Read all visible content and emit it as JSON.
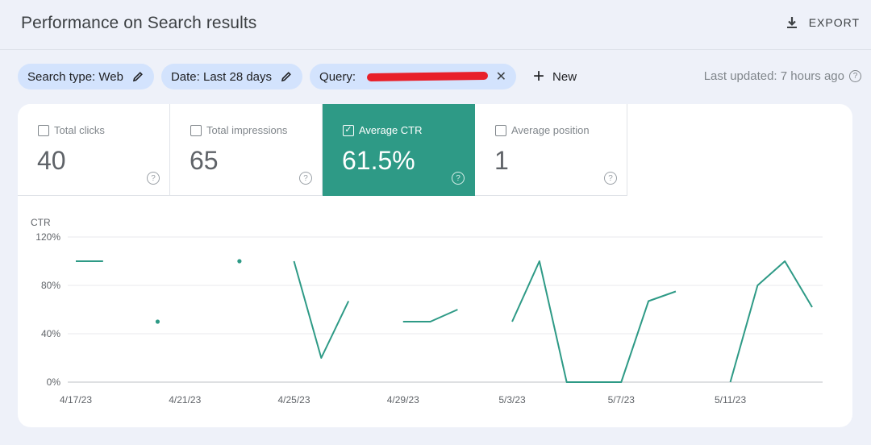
{
  "header": {
    "title": "Performance on Search results",
    "export_label": "EXPORT"
  },
  "filters": {
    "search_type": "Search type: Web",
    "date": "Date: Last 28 days",
    "query_label": "Query:",
    "new_label": "New"
  },
  "last_updated": "Last updated: 7 hours ago",
  "metrics": [
    {
      "label": "Total clicks",
      "value": "40",
      "checked": false
    },
    {
      "label": "Total impressions",
      "value": "65",
      "checked": false
    },
    {
      "label": "Average CTR",
      "value": "61.5%",
      "checked": true
    },
    {
      "label": "Average position",
      "value": "1",
      "checked": false
    }
  ],
  "colors": {
    "accent": "#2e9a86",
    "chip": "#d3e3fd",
    "line": "#2e9a86"
  },
  "chart_data": {
    "type": "line",
    "ylabel": "CTR",
    "xlabel": "",
    "ylim": [
      0,
      120
    ],
    "yticks": [
      0,
      40,
      80,
      120
    ],
    "ytick_labels": [
      "0%",
      "40%",
      "80%",
      "120%"
    ],
    "x_tick_labels": [
      "4/17/23",
      "4/21/23",
      "4/25/23",
      "4/29/23",
      "5/3/23",
      "5/7/23",
      "5/11/23"
    ],
    "x_tick_indices": [
      0,
      4,
      8,
      12,
      16,
      20,
      24
    ],
    "x": [
      "4/17/23",
      "4/18/23",
      "4/19/23",
      "4/20/23",
      "4/21/23",
      "4/22/23",
      "4/23/23",
      "4/24/23",
      "4/25/23",
      "4/26/23",
      "4/27/23",
      "4/28/23",
      "4/29/23",
      "4/30/23",
      "5/1/23",
      "5/2/23",
      "5/3/23",
      "5/4/23",
      "5/5/23",
      "5/6/23",
      "5/7/23",
      "5/8/23",
      "5/9/23",
      "5/10/23",
      "5/11/23",
      "5/12/23",
      "5/13/23",
      "5/14/23"
    ],
    "series": [
      {
        "name": "",
        "values": [
          100,
          100,
          null,
          50,
          null,
          null,
          100,
          null,
          100,
          20,
          67,
          null,
          50,
          50,
          60,
          null,
          50,
          100,
          0,
          0,
          0,
          67,
          75,
          null,
          0,
          80,
          100,
          62
        ]
      }
    ],
    "grid": true
  }
}
